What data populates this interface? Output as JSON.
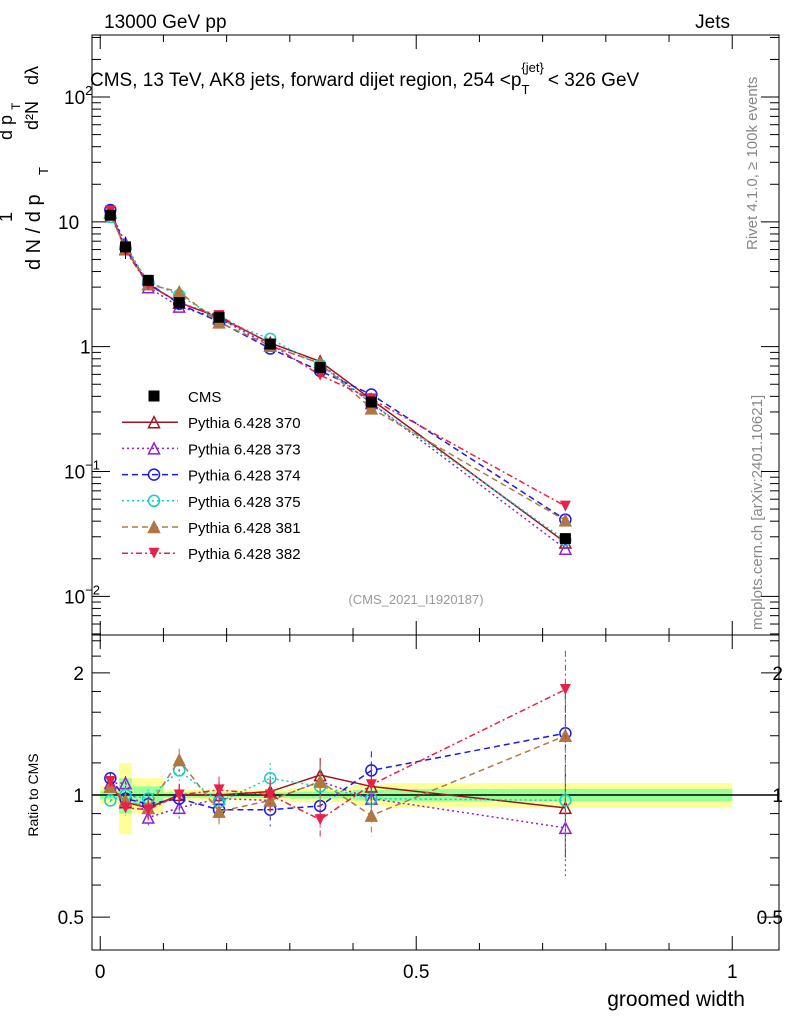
{
  "header": {
    "left": "13000 GeV pp",
    "right": "Jets"
  },
  "side": {
    "rivet": "Rivet 4.1.0, ≥ 100k events",
    "mcplots": "mcplots.cern.ch [arXiv:2401.10621]"
  },
  "chart_data": {
    "type": "line",
    "title": "CMS, 13 TeV, AK8 jets, forward dijet region, 254 <p_T^{jet}< 326 GeV",
    "title_parts": {
      "main": "CMS, 13 TeV, AK8 jets, forward dijet region, 254 <p",
      "sub": "T",
      "sup": "{jet}",
      "end": "< 326 GeV"
    },
    "ylabel": "1/dN/dp_T  d²N/dp_T dλ",
    "ylabel_parts": {
      "a": "1",
      "b": "d N / d p",
      "c": "T",
      "d": "d²N",
      "e": "d p",
      "f": "T",
      "g": "dλ"
    },
    "xlabel": "groomed width",
    "ratio_ylabel": "Ratio to CMS",
    "analysis_label": "(CMS_2021_I1920187)",
    "xlim": [
      -0.013,
      1.074
    ],
    "ylim": [
      0.0049,
      314
    ],
    "yscale": "log",
    "ratio_ylim": [
      0.415,
      2.48
    ],
    "x_ticks": [
      {
        "v": 0,
        "l": "0"
      },
      {
        "v": 0.5,
        "l": "0.5"
      },
      {
        "v": 1,
        "l": "1"
      }
    ],
    "y_ticks": [
      {
        "v": 0.01,
        "b": "10",
        "e": "−2"
      },
      {
        "v": 0.1,
        "b": "10",
        "e": "−1"
      },
      {
        "v": 1,
        "b": "1",
        "e": ""
      },
      {
        "v": 10,
        "b": "10",
        "e": ""
      },
      {
        "v": 100,
        "b": "10",
        "e": "2"
      }
    ],
    "ratio_ticks": [
      {
        "v": 0.5,
        "l": "0.5"
      },
      {
        "v": 1,
        "l": "1"
      },
      {
        "v": 2,
        "l": "2"
      }
    ],
    "x": [
      0.016,
      0.04,
      0.076,
      0.125,
      0.188,
      0.269,
      0.348,
      0.429,
      0.736
    ],
    "bin_edges": [
      0,
      0.03,
      0.05,
      0.1,
      0.15,
      0.22,
      0.3,
      0.4,
      0.45,
      1.0
    ],
    "data": {
      "name": "CMS",
      "values": [
        11.3,
        6.3,
        3.4,
        2.25,
        1.72,
        1.05,
        0.68,
        0.36,
        0.029
      ],
      "rel_unc": [
        0.05,
        0.2,
        0.1,
        0.03,
        0.03,
        0.03,
        0.04,
        0.06,
        0.07
      ]
    },
    "series": [
      {
        "name": "Pythia 6.428 370",
        "color": "#a0141e",
        "marker": "tri-up-open",
        "dash": "",
        "ratio": [
          1.05,
          0.96,
          0.93,
          1.0,
          1.0,
          1.02,
          1.12,
          1.05,
          0.93
        ]
      },
      {
        "name": "Pythia 6.428 373",
        "color": "#9020d0",
        "marker": "tri-up-open",
        "dash": "2,3",
        "ratio": [
          1.07,
          1.07,
          0.88,
          0.93,
          0.98,
          0.97,
          1.08,
          0.98,
          0.83
        ]
      },
      {
        "name": "Pythia 6.428 374",
        "color": "#1a1ae6",
        "marker": "circle-open",
        "dash": "6,4",
        "ratio": [
          1.1,
          0.98,
          0.95,
          0.98,
          0.92,
          0.92,
          0.94,
          1.15,
          1.42
        ]
      },
      {
        "name": "Pythia 6.428 375",
        "color": "#10d0c0",
        "marker": "circle-open",
        "dash": "2,3",
        "ratio": [
          0.97,
          1.0,
          0.98,
          1.15,
          0.96,
          1.1,
          1.05,
          0.98,
          0.97
        ]
      },
      {
        "name": "Pythia 6.428 381",
        "color": "#b07840",
        "marker": "tri-up-filled",
        "dash": "6,4",
        "ratio": [
          1.05,
          0.97,
          0.93,
          1.22,
          0.91,
          0.97,
          1.08,
          0.89,
          1.4
        ]
      },
      {
        "name": "Pythia 6.428 382",
        "color": "#e8204a",
        "marker": "tri-down-filled",
        "dash": "6,3,2,3",
        "ratio": [
          1.08,
          0.93,
          0.92,
          1.0,
          1.03,
          1.0,
          0.87,
          1.06,
          1.82
        ]
      }
    ]
  }
}
